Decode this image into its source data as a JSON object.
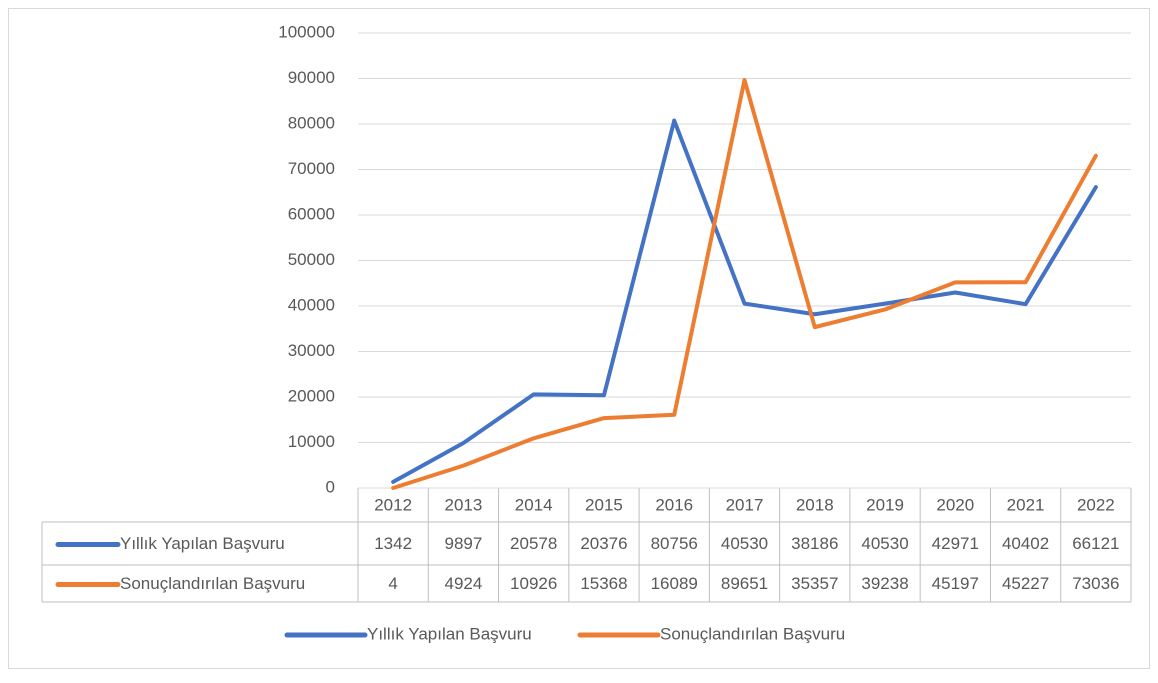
{
  "chart_data": {
    "type": "line",
    "categories": [
      "2012",
      "2013",
      "2014",
      "2015",
      "2016",
      "2017",
      "2018",
      "2019",
      "2020",
      "2021",
      "2022"
    ],
    "series": [
      {
        "name": "Yıllık Yapılan Başvuru",
        "color": "#4472c4",
        "values": [
          1342,
          9897,
          20578,
          20376,
          80756,
          40530,
          38186,
          40530,
          42971,
          40402,
          66121
        ]
      },
      {
        "name": "Sonuçlandırılan Başvuru",
        "color": "#ed7d31",
        "values": [
          4,
          4924,
          10926,
          15368,
          16089,
          89651,
          35357,
          39238,
          45197,
          45227,
          73036
        ]
      }
    ],
    "ylim": [
      0,
      100000
    ],
    "yticks": [
      0,
      10000,
      20000,
      30000,
      40000,
      50000,
      60000,
      70000,
      80000,
      90000,
      100000
    ],
    "grid": true,
    "legend": "bottom",
    "data_table": true
  }
}
